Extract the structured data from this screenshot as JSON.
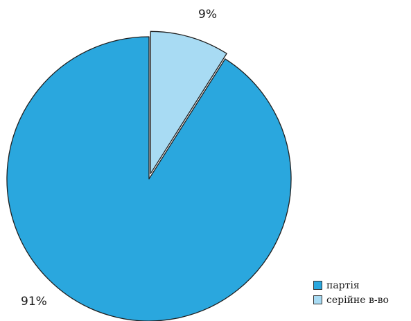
{
  "chart_data": {
    "type": "pie",
    "categories": [
      "партія",
      "серійне в-во"
    ],
    "values": [
      91,
      9
    ],
    "data_labels": [
      "91%",
      "9%"
    ],
    "colors": [
      "#2aa7de",
      "#a8dbf3"
    ],
    "exploded": [
      false,
      true
    ],
    "start_angle": "12 o'clock, clockwise",
    "legend_position": "bottom-right",
    "title": ""
  }
}
